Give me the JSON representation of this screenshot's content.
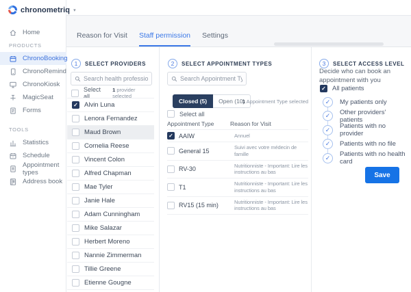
{
  "colors": {
    "accent_blue": "#1673e6",
    "navy": "#24395e",
    "active_tab": "#3b78e7",
    "sidebar_active_bg": "#e9f0fb"
  },
  "brand": {
    "name": "chronometriq",
    "caret_icon": "chevron-down-icon",
    "logo_icon": "spinner-logo-icon"
  },
  "sidebar": {
    "home": {
      "icon": "home-icon",
      "label": "Home"
    },
    "sections": [
      {
        "label": "PRODUCTS",
        "items": [
          {
            "icon": "chronobooking-calendar-icon",
            "label": "ChronoBooking",
            "active": true
          },
          {
            "icon": "chronoremind-phone-icon",
            "label": "ChronoRemind",
            "active": false
          },
          {
            "icon": "chronokiosk-monitor-icon",
            "label": "ChronoKiosk",
            "active": false
          },
          {
            "icon": "magicseat-icon",
            "label": "MagicSeat",
            "active": false
          },
          {
            "icon": "forms-clipboard-icon",
            "label": "Forms",
            "active": false
          }
        ]
      },
      {
        "label": "TOOLS",
        "items": [
          {
            "icon": "statistics-chart-icon",
            "label": "Statistics",
            "active": false
          },
          {
            "icon": "schedule-calendar-icon",
            "label": "Schedule",
            "active": false
          },
          {
            "icon": "appointment-types-list-icon",
            "label": "Appointment types",
            "active": false
          },
          {
            "icon": "address-book-icon",
            "label": "Address book",
            "active": false
          }
        ]
      }
    ]
  },
  "tabs": [
    {
      "label": "Reason for Visit",
      "active": false
    },
    {
      "label": "Staff permission",
      "active": true
    },
    {
      "label": "Settings",
      "active": false
    }
  ],
  "providers": {
    "step": "1",
    "title": "SELECT PROVIDERS",
    "search_placeholder": "Search health professional...",
    "select_all": "Select all",
    "selected_count": "1",
    "selected_note": "provider selected",
    "items": [
      {
        "name": "Alvin Luna",
        "checked": true,
        "highlighted": false
      },
      {
        "name": "Lenora Fernandez",
        "checked": false,
        "highlighted": false
      },
      {
        "name": "Maud Brown",
        "checked": false,
        "highlighted": true
      },
      {
        "name": "Cornelia Reese",
        "checked": false,
        "highlighted": false
      },
      {
        "name": "Vincent Colon",
        "checked": false,
        "highlighted": false
      },
      {
        "name": "Alfred Chapman",
        "checked": false,
        "highlighted": false
      },
      {
        "name": "Mae Tyler",
        "checked": false,
        "highlighted": false
      },
      {
        "name": "Janie Hale",
        "checked": false,
        "highlighted": false
      },
      {
        "name": "Adam Cunningham",
        "checked": false,
        "highlighted": false
      },
      {
        "name": "Mike Salazar",
        "checked": false,
        "highlighted": false
      },
      {
        "name": "Herbert Moreno",
        "checked": false,
        "highlighted": false
      },
      {
        "name": "Nannie Zimmerman",
        "checked": false,
        "highlighted": false
      },
      {
        "name": "Tillie Greene",
        "checked": false,
        "highlighted": false
      },
      {
        "name": "Etienne Gougne",
        "checked": false,
        "highlighted": false
      }
    ]
  },
  "appointments": {
    "step": "2",
    "title": "SELECT APPOINTMENT TYPES",
    "search_placeholder": "Search Appointment Type...",
    "closed_label": "Closed (5)",
    "open_label": "Open (10)",
    "selected_count": "1",
    "selected_note": "Appointment Type selected",
    "select_all": "Select all",
    "col_type": "Appointment Type",
    "col_reason": "Reason for Visit",
    "rows": [
      {
        "type": "AAIW",
        "reason": "Annuel",
        "checked": true
      },
      {
        "type": "General 15",
        "reason": "Suivi avec votre médecin de famille",
        "checked": false
      },
      {
        "type": "RV-30",
        "reason": "Nutritionniste - Important: Lire les instructions au bas",
        "checked": false
      },
      {
        "type": "T1",
        "reason": "Nutritionniste - Important: Lire les instructions au bas",
        "checked": false
      },
      {
        "type": "RV15 (15 min)",
        "reason": "Nutritionniste - Important: Lire les instructions au bas",
        "checked": false
      }
    ]
  },
  "access": {
    "step": "3",
    "title": "SELECT ACCESS LEVEL",
    "description": "Decide who can book an appointment with you",
    "all_patients": "All patients",
    "all_patients_checked": true,
    "levels": [
      "My patients only",
      "Other providers' patients",
      "Patients with no provider",
      "Patients with no file",
      "Patients with no health card"
    ],
    "save_label": "Save"
  }
}
